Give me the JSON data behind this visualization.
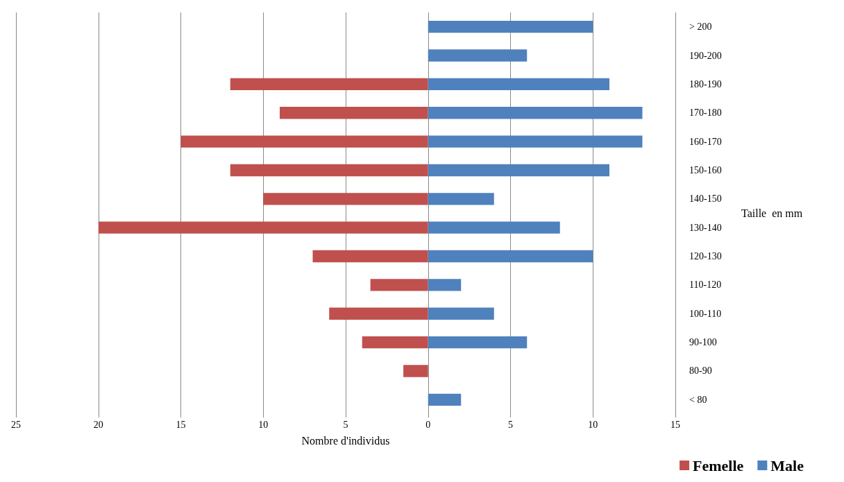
{
  "chart_data": {
    "type": "bar",
    "orientation": "horizontal",
    "stacked": true,
    "xlabel": "Nombre d'individus",
    "ylabel": "Taille  en mm",
    "categories": [
      "> 200",
      "190-200",
      "180-190",
      "170-180",
      "160-170",
      "150-160",
      "140-150",
      "130-140",
      "120-130",
      "110-120",
      "100-110",
      "90-100",
      "80-90",
      "< 80"
    ],
    "series": [
      {
        "name": "Femelle",
        "color": "#c0504d",
        "values": [
          null,
          null,
          -12,
          -9,
          -15,
          -12,
          -10,
          -20,
          -7,
          -3.5,
          -6,
          -4,
          -1.5,
          null
        ]
      },
      {
        "name": "Male",
        "color": "#4f81bd",
        "values": [
          10,
          6,
          11,
          13,
          13,
          11,
          4,
          8,
          10,
          2,
          4,
          6,
          null,
          2
        ]
      }
    ],
    "xlim": [
      -25,
      15
    ],
    "xticks": [
      {
        "value": -25,
        "label": "25"
      },
      {
        "value": -20,
        "label": "20"
      },
      {
        "value": -15,
        "label": "15"
      },
      {
        "value": -10,
        "label": "10"
      },
      {
        "value": -5,
        "label": "5"
      },
      0,
      5,
      10,
      15
    ],
    "grid": "x",
    "legend": "bottom right"
  }
}
